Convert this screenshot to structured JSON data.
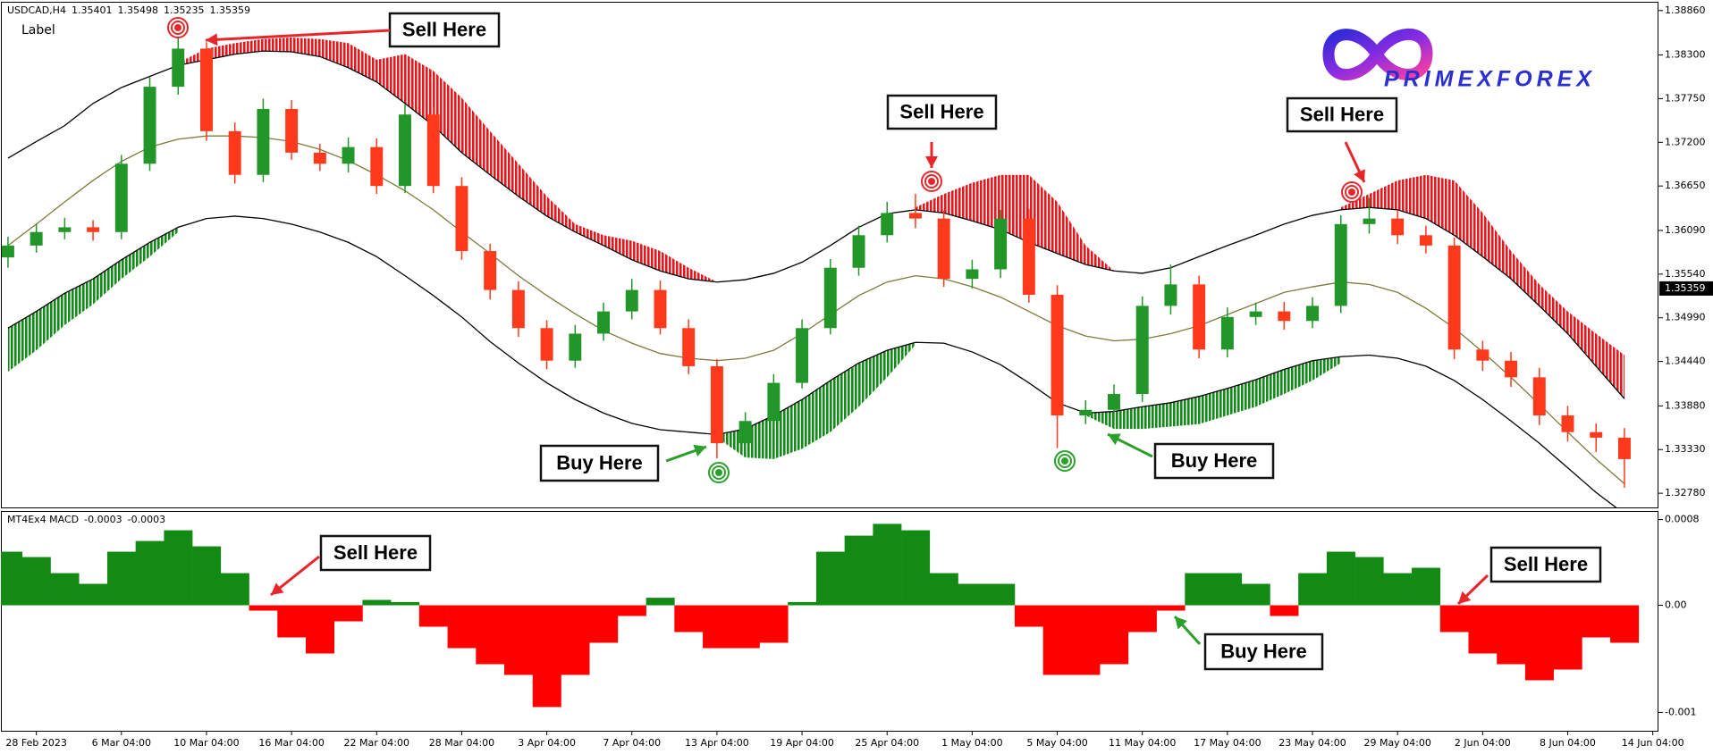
{
  "logo": "PRIMEXFOREX",
  "chart_data": [
    {
      "type": "candlestick",
      "title": "USDCAD,H4",
      "header": [
        1.35401,
        1.35498,
        1.35235,
        1.35359
      ],
      "label": "Label",
      "xlim": [
        -0.25,
        58.2
      ],
      "ylim": [
        1.3259,
        1.3897
      ],
      "yticks": [
        {
          "value": 1.3886,
          "label": "1.38860"
        },
        {
          "value": 1.383,
          "label": "1.38300"
        },
        {
          "value": 1.3775,
          "label": "1.37750"
        },
        {
          "value": 1.372,
          "label": "1.37200"
        },
        {
          "value": 1.3665,
          "label": "1.36650"
        },
        {
          "value": 1.3609,
          "label": "1.36090"
        },
        {
          "value": 1.3554,
          "label": "1.35540"
        },
        {
          "value": 1.3499,
          "label": "1.34990"
        },
        {
          "value": 1.3444,
          "label": "1.34440"
        },
        {
          "value": 1.3388,
          "label": "1.33880"
        },
        {
          "value": 1.3333,
          "label": "1.33330"
        },
        {
          "value": 1.3278,
          "label": "1.32780"
        }
      ],
      "colors": {
        "up": "#23962a",
        "down": "#ff3a1c"
      },
      "open": [
        1.3575,
        1.359,
        1.3607,
        1.3613,
        1.3607,
        1.3693,
        1.379,
        1.3838,
        1.3734,
        1.3679,
        1.3762,
        1.3707,
        1.3693,
        1.3714,
        1.3665,
        1.3755,
        1.3665,
        1.3583,
        1.3534,
        1.3486,
        1.3445,
        1.3479,
        1.3507,
        1.3534,
        1.3486,
        1.3438,
        1.3341,
        1.3369,
        1.3417,
        1.3486,
        1.3562,
        1.3603,
        1.3631,
        1.3624,
        1.3548,
        1.356,
        1.3624,
        1.3528,
        1.3376,
        1.3383,
        1.3403,
        1.3514,
        1.3541,
        1.3459,
        1.35,
        1.3507,
        1.3495,
        1.3514,
        1.3617,
        1.3624,
        1.3603,
        1.359,
        1.3459,
        1.3445,
        1.3424,
        1.3376,
        1.3355,
        1.3348
      ],
      "high": [
        1.3601,
        1.3618,
        1.3625,
        1.3622,
        1.3704,
        1.3802,
        1.3855,
        1.3846,
        1.3745,
        1.3775,
        1.3773,
        1.3718,
        1.3726,
        1.3725,
        1.3768,
        1.3764,
        1.3676,
        1.3592,
        1.3545,
        1.3496,
        1.349,
        1.3518,
        1.3548,
        1.3546,
        1.3497,
        1.3447,
        1.338,
        1.3428,
        1.3497,
        1.3573,
        1.3615,
        1.3645,
        1.3655,
        1.3634,
        1.3572,
        1.3635,
        1.3636,
        1.354,
        1.3395,
        1.3415,
        1.3526,
        1.3566,
        1.3552,
        1.3512,
        1.3518,
        1.3519,
        1.3525,
        1.3628,
        1.365,
        1.3635,
        1.3615,
        1.36,
        1.347,
        1.3456,
        1.3436,
        1.3388,
        1.3366,
        1.336
      ],
      "low": [
        1.3562,
        1.3581,
        1.3598,
        1.3596,
        1.3598,
        1.3684,
        1.378,
        1.3722,
        1.3668,
        1.367,
        1.3698,
        1.3684,
        1.3682,
        1.3655,
        1.3656,
        1.3656,
        1.3572,
        1.3522,
        1.3475,
        1.3434,
        1.3436,
        1.347,
        1.3497,
        1.3478,
        1.3428,
        1.3322,
        1.333,
        1.336,
        1.341,
        1.3478,
        1.3552,
        1.3594,
        1.3612,
        1.3538,
        1.3536,
        1.3549,
        1.3518,
        1.3335,
        1.3365,
        1.3372,
        1.3393,
        1.3503,
        1.3448,
        1.3449,
        1.349,
        1.3484,
        1.3486,
        1.3505,
        1.3605,
        1.3592,
        1.358,
        1.3447,
        1.3432,
        1.3412,
        1.3364,
        1.3343,
        1.333,
        1.3285
      ],
      "close": [
        1.359,
        1.3607,
        1.3613,
        1.3607,
        1.3693,
        1.379,
        1.3838,
        1.3734,
        1.3679,
        1.3762,
        1.3707,
        1.3693,
        1.3714,
        1.3665,
        1.3755,
        1.3665,
        1.3583,
        1.3534,
        1.3486,
        1.3445,
        1.3479,
        1.3507,
        1.3534,
        1.3486,
        1.3438,
        1.3341,
        1.3369,
        1.3417,
        1.3486,
        1.3562,
        1.3603,
        1.3631,
        1.3624,
        1.3548,
        1.356,
        1.3624,
        1.3528,
        1.3376,
        1.3383,
        1.3403,
        1.3514,
        1.3541,
        1.3459,
        1.35,
        1.3507,
        1.3495,
        1.3514,
        1.3617,
        1.3624,
        1.3603,
        1.359,
        1.3459,
        1.3445,
        1.3424,
        1.3376,
        1.3355,
        1.3348,
        1.3321
      ],
      "lines": [
        {
          "color": "#000000",
          "values": [
            1.37,
            1.3721,
            1.3741,
            1.3769,
            1.3789,
            1.3803,
            1.3817,
            1.3824,
            1.3831,
            1.3835,
            1.3834,
            1.3828,
            1.3814,
            1.3796,
            1.3769,
            1.3741,
            1.3707,
            1.3679,
            1.3652,
            1.3627,
            1.3607,
            1.359,
            1.3572,
            1.3558,
            1.3548,
            1.3544,
            1.3547,
            1.3555,
            1.3569,
            1.359,
            1.3613,
            1.363,
            1.3635,
            1.3631,
            1.3621,
            1.361,
            1.3594,
            1.358,
            1.3566,
            1.3558,
            1.3555,
            1.3562,
            1.3576,
            1.359,
            1.3603,
            1.3617,
            1.3628,
            1.3635,
            1.3638,
            1.3635,
            1.3624,
            1.3603,
            1.3576,
            1.3548,
            1.3514,
            1.3479,
            1.3438,
            1.3397
          ]
        },
        {
          "color": "#7d7a3c",
          "values": [
            1.359,
            1.3617,
            1.3645,
            1.3672,
            1.3696,
            1.3714,
            1.3724,
            1.3728,
            1.3728,
            1.3726,
            1.3721,
            1.3711,
            1.3697,
            1.3679,
            1.3659,
            1.3635,
            1.3607,
            1.358,
            1.3552,
            1.3527,
            1.3504,
            1.3483,
            1.3467,
            1.3454,
            1.3448,
            1.3445,
            1.3448,
            1.3458,
            1.3479,
            1.3503,
            1.3527,
            1.3544,
            1.3552,
            1.3548,
            1.3538,
            1.3525,
            1.3507,
            1.3489,
            1.3476,
            1.347,
            1.3472,
            1.3479,
            1.3489,
            1.3503,
            1.3517,
            1.3531,
            1.3538,
            1.3544,
            1.3541,
            1.3531,
            1.3511,
            1.3486,
            1.3456,
            1.3424,
            1.339,
            1.3355,
            1.3321,
            1.329
          ]
        },
        {
          "color": "#000000",
          "values": [
            1.3486,
            1.3507,
            1.353,
            1.3548,
            1.3572,
            1.3594,
            1.3613,
            1.3624,
            1.3627,
            1.3624,
            1.3617,
            1.3607,
            1.3594,
            1.3576,
            1.3552,
            1.3527,
            1.35,
            1.3469,
            1.3442,
            1.3417,
            1.3396,
            1.3379,
            1.3366,
            1.3358,
            1.3355,
            1.3352,
            1.3359,
            1.3376,
            1.3396,
            1.342,
            1.3442,
            1.3458,
            1.3468,
            1.3467,
            1.3456,
            1.344,
            1.3417,
            1.3392,
            1.3379,
            1.3381,
            1.3387,
            1.3392,
            1.34,
            1.341,
            1.3421,
            1.3434,
            1.3445,
            1.345,
            1.3452,
            1.3448,
            1.3438,
            1.342,
            1.3396,
            1.3369,
            1.3341,
            1.331,
            1.3279,
            1.3252
          ]
        }
      ],
      "bands": [
        {
          "color": "#e5161c",
          "values": [
            null,
            null,
            null,
            null,
            null,
            null,
            1.382,
            1.3838,
            1.3845,
            1.385,
            1.3852,
            1.385,
            1.3845,
            1.3824,
            1.3831,
            1.381,
            1.3776,
            1.3734,
            1.3693,
            1.3652,
            1.3617,
            1.3603,
            1.3596,
            1.3583,
            1.3562,
            1.3544,
            null,
            null,
            null,
            null,
            null,
            null,
            1.3638,
            1.3655,
            1.3669,
            1.3679,
            1.3679,
            1.3645,
            1.359,
            1.3558,
            null,
            null,
            null,
            null,
            null,
            null,
            null,
            1.3638,
            1.3655,
            1.3672,
            1.3679,
            1.3672,
            1.3631,
            1.3583,
            1.3541,
            1.3507,
            1.3479,
            1.3452
          ]
        },
        {
          "color": "#128a16",
          "values": [
            1.3431,
            1.3458,
            1.349,
            1.3516,
            1.3548,
            1.3576,
            1.3607,
            null,
            null,
            null,
            null,
            null,
            null,
            null,
            null,
            null,
            null,
            null,
            null,
            null,
            null,
            null,
            null,
            null,
            null,
            1.3348,
            1.3323,
            1.3321,
            1.3334,
            1.3355,
            1.3387,
            1.3424,
            1.3465,
            null,
            null,
            null,
            null,
            null,
            1.3376,
            1.3359,
            1.3359,
            1.3362,
            1.3365,
            1.3376,
            1.3387,
            1.3403,
            1.342,
            1.3442,
            null,
            null,
            null,
            null,
            null,
            null,
            null,
            null,
            null,
            null
          ]
        }
      ],
      "annotations": [
        {
          "text": "Sell Here",
          "color": "#e8262a"
        },
        {
          "text": "Sell Here",
          "color": "#e8262a"
        },
        {
          "text": "Sell Here",
          "color": "#e8262a"
        },
        {
          "text": "Buy Here",
          "color": "#2aa02a"
        },
        {
          "text": "Buy Here",
          "color": "#2aa02a"
        }
      ]
    },
    {
      "type": "bar",
      "title": "MT4Ex4 MACD",
      "header": [
        -0.0003,
        -0.0003
      ],
      "xlim": [
        -0.25,
        58.2
      ],
      "ylim": [
        -0.00118,
        0.00088
      ],
      "yticks": [
        0.0008,
        {
          "value": 0,
          "label": "0.00"
        },
        -0.001
      ],
      "colors": {
        "up": "#138a13",
        "down": "#ff0000"
      },
      "values": [
        0.0005,
        0.00045,
        0.0003,
        0.0002,
        0.0005,
        0.0006,
        0.0007,
        0.00055,
        0.0003,
        -5e-05,
        -0.0003,
        -0.00045,
        -0.00015,
        5e-05,
        3e-05,
        -0.0002,
        -0.0004,
        -0.00055,
        -0.00065,
        -0.00095,
        -0.00065,
        -0.00035,
        -0.0001,
        7e-05,
        -0.00025,
        -0.0004,
        -0.0004,
        -0.00035,
        3e-05,
        0.0005,
        0.00065,
        0.00076,
        0.0007,
        0.0003,
        0.0002,
        0.0002,
        -0.0002,
        -0.00065,
        -0.00065,
        -0.00055,
        -0.00025,
        -5e-05,
        0.0003,
        0.0003,
        0.0002,
        -0.0001,
        0.0003,
        0.0005,
        0.00045,
        0.0003,
        0.00035,
        -0.00025,
        -0.00045,
        -0.00055,
        -0.0007,
        -0.0006,
        -0.0003,
        -0.00035
      ],
      "xticks": [
        {
          "value": 1,
          "label": "28 Feb 2023"
        },
        {
          "value": 4,
          "label": "6 Mar 04:00"
        },
        {
          "value": 7,
          "label": "10 Mar 04:00"
        },
        {
          "value": 10,
          "label": "16 Mar 04:00"
        },
        {
          "value": 13,
          "label": "22 Mar 04:00"
        },
        {
          "value": 16,
          "label": "28 Mar 04:00"
        },
        {
          "value": 19,
          "label": "3 Apr 04:00"
        },
        {
          "value": 22,
          "label": "7 Apr 04:00"
        },
        {
          "value": 25,
          "label": "13 Apr 04:00"
        },
        {
          "value": 28,
          "label": "19 Apr 04:00"
        },
        {
          "value": 31,
          "label": "25 Apr 04:00"
        },
        {
          "value": 34,
          "label": "1 May 04:00"
        },
        {
          "value": 37,
          "label": "5 May 04:00"
        },
        {
          "value": 40,
          "label": "11 May 04:00"
        },
        {
          "value": 43,
          "label": "17 May 04:00"
        },
        {
          "value": 46,
          "label": "23 May 04:00"
        },
        {
          "value": 49,
          "label": "29 May 04:00"
        },
        {
          "value": 52,
          "label": "2 Jun 04:00"
        },
        {
          "value": 55,
          "label": "8 Jun 04:00"
        },
        {
          "value": 58,
          "label": "14 Jun 04:00"
        }
      ],
      "annotations": [
        {
          "text": "Sell Here",
          "color": "#e8262a"
        },
        {
          "text": "Buy Here",
          "color": "#2aa02a"
        },
        {
          "text": "Sell Here",
          "color": "#e8262a"
        }
      ]
    }
  ]
}
